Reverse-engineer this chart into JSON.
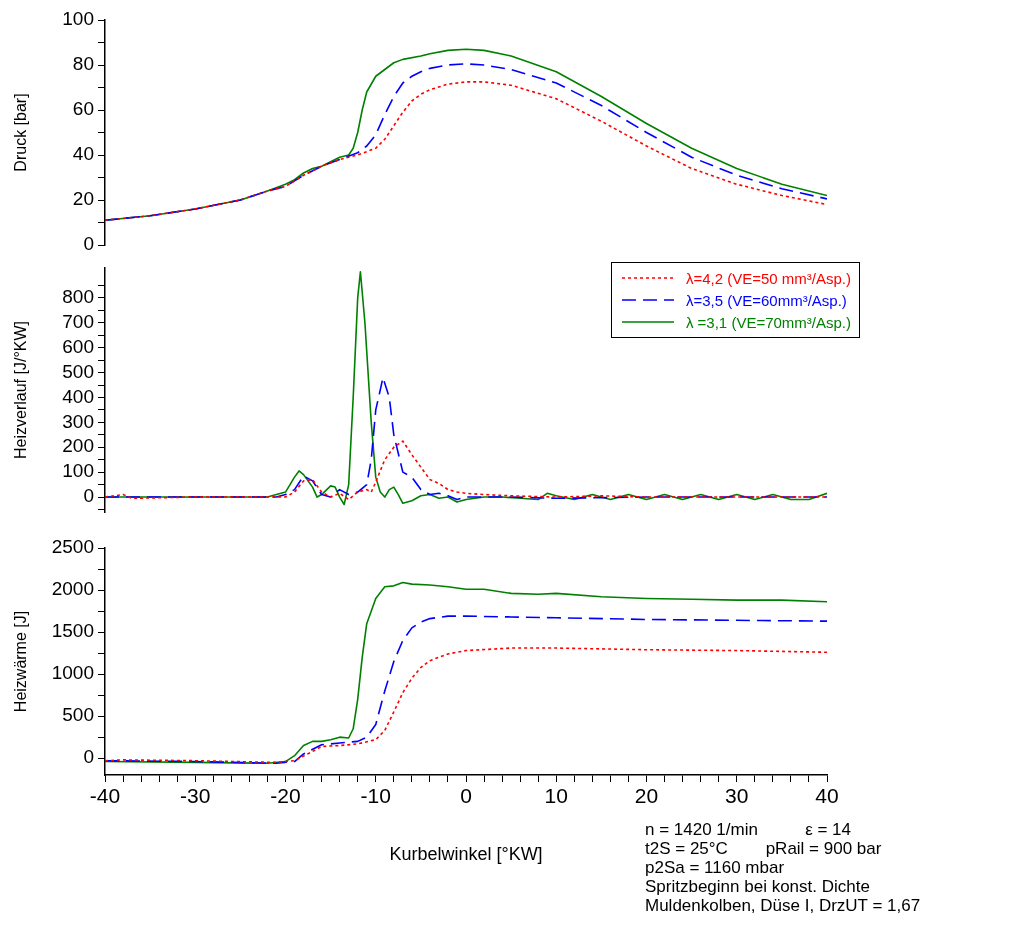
{
  "chart_data": [
    {
      "type": "line",
      "ylabel": "Druck [bar]",
      "xlim": [
        -40,
        40
      ],
      "ylim": [
        0,
        100
      ],
      "yticks": [
        0,
        {
          "value": 10,
          "label": null
        },
        20,
        {
          "value": 30,
          "label": null
        },
        40,
        {
          "value": 50,
          "label": null
        },
        60,
        {
          "value": 70,
          "label": null
        },
        80,
        {
          "value": 90,
          "label": null
        },
        100
      ],
      "tick_labels": "y",
      "marker": "none",
      "series": [
        {
          "color": "#ff0000",
          "line_style": "dotted",
          "x": [
            -40,
            -35,
            -30,
            -25,
            -22,
            -20,
            -18,
            -16,
            -14,
            -12,
            -10,
            -9,
            -8,
            -7,
            -6,
            -5,
            -4,
            -2,
            0,
            2,
            5,
            10,
            15,
            20,
            25,
            30,
            35,
            40
          ],
          "values": [
            11,
            13,
            16,
            20,
            24,
            26,
            31,
            35,
            38,
            40,
            43,
            47,
            53,
            59,
            64,
            67,
            69,
            71.5,
            72.5,
            72.5,
            71,
            65,
            55,
            44,
            34,
            27,
            22,
            18
          ]
        },
        {
          "color": "#0000ff",
          "line_style": "dashed",
          "x": [
            -40,
            -35,
            -30,
            -25,
            -22,
            -20,
            -18,
            -16,
            -14,
            -12,
            -11,
            -10,
            -9,
            -8,
            -7,
            -6,
            -5,
            -4,
            -2,
            0,
            2,
            5,
            10,
            15,
            20,
            25,
            30,
            35,
            40
          ],
          "values": [
            11,
            13,
            16,
            20,
            24,
            26,
            31,
            35,
            38,
            41,
            44,
            49,
            58,
            66,
            72,
            75,
            77,
            78.5,
            80,
            80.5,
            80,
            78,
            72,
            62,
            50,
            39,
            31,
            25,
            20.5
          ]
        },
        {
          "color": "#008000",
          "line_style": "solid",
          "x": [
            -40,
            -35,
            -30,
            -25,
            -22,
            -20,
            -19,
            -18,
            -17,
            -16,
            -15,
            -14,
            -13,
            -12.5,
            -12,
            -11.5,
            -11,
            -10,
            -9,
            -8,
            -7,
            -5,
            -4,
            -2,
            0,
            2,
            5,
            10,
            15,
            20,
            25,
            30,
            35,
            40
          ],
          "values": [
            11,
            13,
            16,
            20,
            24,
            27,
            29,
            32,
            34,
            35,
            37,
            39,
            40,
            43,
            50,
            60,
            68,
            75,
            78,
            81,
            82.5,
            84,
            85,
            86.5,
            87,
            86.5,
            84,
            77,
            66,
            54,
            43,
            34,
            27,
            22
          ]
        }
      ]
    },
    {
      "type": "line",
      "ylabel": "Heizverlauf [J/°KW]",
      "xlim": [
        -40,
        40
      ],
      "ylim": [
        -60,
        920
      ],
      "yticks": [
        {
          "value": -50,
          "label": null
        },
        0,
        {
          "value": 50,
          "label": null
        },
        100,
        {
          "value": 150,
          "label": null
        },
        200,
        {
          "value": 250,
          "label": null
        },
        300,
        {
          "value": 350,
          "label": null
        },
        400,
        {
          "value": 450,
          "label": null
        },
        500,
        {
          "value": 550,
          "label": null
        },
        600,
        {
          "value": 650,
          "label": null
        },
        700,
        {
          "value": 750,
          "label": null
        },
        800,
        {
          "value": 850,
          "label": null
        }
      ],
      "tick_labels": "y",
      "marker": "none",
      "legend": "top right",
      "series": [
        {
          "name": "λ=4,2 (VE=50 mm³/Asp.)",
          "color": "#ff0000",
          "line_style": "dotted",
          "x": [
            -40,
            -38,
            -37,
            -30,
            -20,
            -19,
            -18,
            -17,
            -16,
            -15,
            -14,
            -13,
            -12,
            -11,
            -10.5,
            -10,
            -9,
            -8,
            -7,
            -6,
            -5,
            -4,
            -3,
            -2,
            -1,
            0,
            2,
            5,
            10,
            15,
            20,
            30,
            40
          ],
          "values": [
            0,
            10,
            -5,
            0,
            0,
            20,
            65,
            70,
            20,
            0,
            15,
            -10,
            20,
            30,
            20,
            60,
            150,
            200,
            225,
            170,
            120,
            70,
            55,
            30,
            20,
            15,
            10,
            5,
            0,
            5,
            0,
            0,
            0
          ]
        },
        {
          "name": "λ=3,5 (VE=60mm³/Asp.)",
          "color": "#0000ff",
          "line_style": "dashed",
          "x": [
            -40,
            -30,
            -21,
            -20,
            -19,
            -18,
            -17,
            -16,
            -15,
            -14,
            -13,
            -12,
            -11,
            -10.5,
            -10,
            -9.5,
            -9.2,
            -8.5,
            -8,
            -7,
            -6,
            -5,
            -4,
            -3,
            -2,
            -1,
            0,
            5,
            10,
            20,
            30,
            40
          ],
          "values": [
            0,
            0,
            0,
            10,
            30,
            85,
            65,
            10,
            0,
            30,
            10,
            20,
            50,
            150,
            350,
            430,
            480,
            400,
            250,
            100,
            80,
            30,
            10,
            15,
            5,
            -10,
            0,
            0,
            -5,
            0,
            0,
            0
          ]
        },
        {
          "name": "λ =3,1 (VE=70mm³/Asp.)",
          "color": "#008000",
          "line_style": "solid",
          "x": [
            -40,
            -30,
            -22,
            -20,
            -19,
            -18.5,
            -18,
            -17,
            -16.5,
            -16,
            -15,
            -14.5,
            -14,
            -13.5,
            -13,
            -12.5,
            -12,
            -11.7,
            -11.2,
            -10.5,
            -10,
            -9.5,
            -9,
            -8.5,
            -8,
            -7.5,
            -7,
            -6,
            -5,
            -4,
            -3,
            -2,
            -1,
            0,
            2,
            4,
            6,
            8,
            9,
            10,
            12,
            14,
            16,
            18,
            20,
            22,
            24,
            26,
            28,
            30,
            32,
            34,
            36,
            38,
            40
          ],
          "values": [
            0,
            0,
            0,
            20,
            80,
            105,
            90,
            40,
            0,
            10,
            45,
            40,
            0,
            -30,
            50,
            400,
            800,
            905,
            700,
            300,
            80,
            20,
            0,
            30,
            40,
            10,
            -25,
            -15,
            5,
            10,
            -5,
            0,
            -20,
            -10,
            0,
            0,
            -5,
            -10,
            15,
            5,
            -10,
            10,
            -10,
            10,
            -10,
            10,
            -10,
            10,
            -10,
            10,
            -10,
            10,
            -10,
            -10,
            15
          ]
        }
      ]
    },
    {
      "type": "line",
      "ylabel": "Heizwärme [J]",
      "xlabel": "Kurbelwinkel [°KW]",
      "xlim": [
        -40,
        40
      ],
      "xticks": [
        -40,
        {
          "value": -38,
          "label": null
        },
        {
          "value": -36,
          "label": null
        },
        {
          "value": -34,
          "label": null
        },
        {
          "value": -32,
          "label": null
        },
        -30,
        {
          "value": -28,
          "label": null
        },
        {
          "value": -26,
          "label": null
        },
        {
          "value": -24,
          "label": null
        },
        {
          "value": -22,
          "label": null
        },
        -20,
        {
          "value": -18,
          "label": null
        },
        {
          "value": -16,
          "label": null
        },
        {
          "value": -14,
          "label": null
        },
        {
          "value": -12,
          "label": null
        },
        -10,
        {
          "value": -8,
          "label": null
        },
        {
          "value": -6,
          "label": null
        },
        {
          "value": -4,
          "label": null
        },
        {
          "value": -2,
          "label": null
        },
        0,
        {
          "value": 2,
          "label": null
        },
        {
          "value": 4,
          "label": null
        },
        {
          "value": 6,
          "label": null
        },
        {
          "value": 8,
          "label": null
        },
        10,
        {
          "value": 12,
          "label": null
        },
        {
          "value": 14,
          "label": null
        },
        {
          "value": 16,
          "label": null
        },
        {
          "value": 18,
          "label": null
        },
        20,
        {
          "value": 22,
          "label": null
        },
        {
          "value": 24,
          "label": null
        },
        {
          "value": 26,
          "label": null
        },
        {
          "value": 28,
          "label": null
        },
        30,
        {
          "value": 32,
          "label": null
        },
        {
          "value": 34,
          "label": null
        },
        {
          "value": 36,
          "label": null
        },
        {
          "value": 38,
          "label": null
        },
        40
      ],
      "ylim": [
        -200,
        2500
      ],
      "yticks": [
        0,
        {
          "value": 250,
          "label": null
        },
        500,
        {
          "value": 750,
          "label": null
        },
        1000,
        {
          "value": 1250,
          "label": null
        },
        1500,
        {
          "value": 1750,
          "label": null
        },
        2000,
        {
          "value": 2250,
          "label": null
        },
        2500
      ],
      "marker": "none",
      "annotations": [
        "n = 1420 1/min          ε = 14",
        "t2S = 25°C        pRail = 900 bar",
        "p2Sa = 1160 mbar",
        "Spritzbeginn bei konst. Dichte",
        "Muldenkolben, Düse I, DrzUT = 1,67"
      ],
      "series": [
        {
          "color": "#ff0000",
          "line_style": "dotted",
          "x": [
            -40,
            -38,
            -30,
            -21,
            -19,
            -17,
            -16,
            -14,
            -12,
            -10,
            -9,
            -8,
            -7,
            -6,
            -5,
            -4,
            -2,
            0,
            5,
            10,
            20,
            30,
            40
          ],
          "values": [
            -30,
            -20,
            -30,
            -50,
            -30,
            80,
            140,
            150,
            170,
            220,
            330,
            550,
            780,
            950,
            1080,
            1160,
            1240,
            1280,
            1310,
            1310,
            1290,
            1280,
            1260
          ]
        },
        {
          "color": "#0000ff",
          "line_style": "dashed",
          "x": [
            -40,
            -30,
            -21,
            -19,
            -18,
            -16,
            -14,
            -12,
            -11,
            -10,
            -9,
            -8,
            -7,
            -6,
            -5,
            -4,
            -2,
            0,
            5,
            10,
            20,
            30,
            40
          ],
          "values": [
            -30,
            -40,
            -60,
            -40,
            50,
            160,
            180,
            200,
            250,
            400,
            800,
            1150,
            1400,
            1550,
            1620,
            1660,
            1690,
            1690,
            1680,
            1670,
            1650,
            1640,
            1630
          ]
        },
        {
          "color": "#008000",
          "line_style": "solid",
          "x": [
            -40,
            -30,
            -22,
            -20,
            -19,
            -18,
            -17,
            -16,
            -15,
            -14,
            -13,
            -12.5,
            -12,
            -11.5,
            -11,
            -10,
            -9,
            -8,
            -7,
            -6,
            -4,
            -2,
            0,
            2,
            5,
            8,
            10,
            15,
            20,
            25,
            30,
            35,
            40
          ],
          "values": [
            -40,
            -50,
            -60,
            -40,
            30,
            150,
            200,
            200,
            220,
            250,
            240,
            350,
            700,
            1200,
            1600,
            1900,
            2040,
            2050,
            2090,
            2070,
            2060,
            2040,
            2010,
            2010,
            1960,
            1950,
            1960,
            1920,
            1900,
            1890,
            1880,
            1880,
            1860
          ]
        }
      ]
    }
  ]
}
